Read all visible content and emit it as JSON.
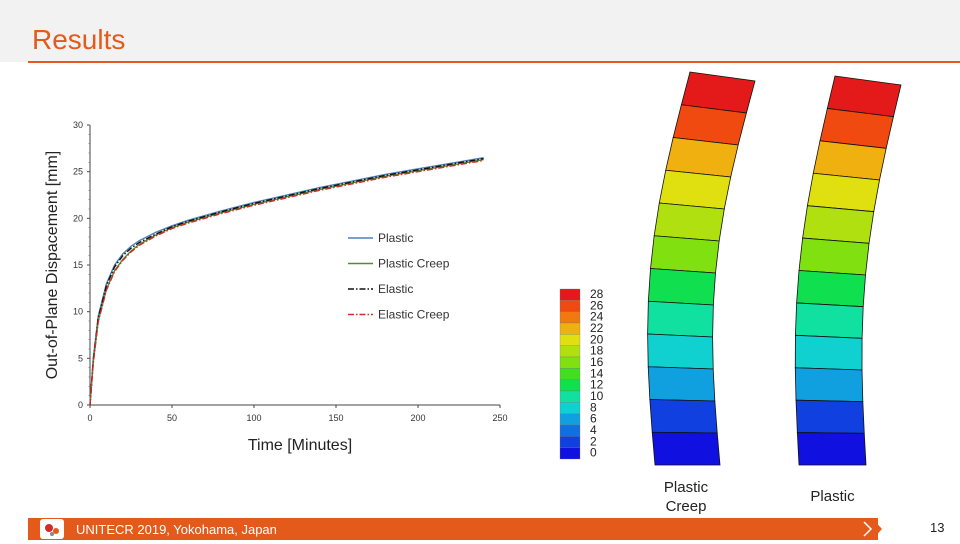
{
  "slide": {
    "title": "Results",
    "footer": "UNITECR 2019, Yokohama, Japan",
    "page": "13",
    "accent": "#e35a1a"
  },
  "chart_data": {
    "type": "line",
    "xlabel": "Time [Minutes]",
    "ylabel": "Out-of-Plane Dispacement [mm]",
    "xlim": [
      0,
      250
    ],
    "ylim": [
      0,
      30
    ],
    "xticks": [
      0,
      50,
      100,
      150,
      200,
      250
    ],
    "yticks": [
      0,
      5,
      10,
      15,
      20,
      25,
      30
    ],
    "legend_position": "center-right",
    "x": [
      0,
      2,
      5,
      10,
      15,
      20,
      25,
      30,
      40,
      50,
      60,
      80,
      100,
      120,
      140,
      160,
      180,
      200,
      220,
      240
    ],
    "series": [
      {
        "name": "Plastic",
        "color": "#4f81bd",
        "style": "solid",
        "values": [
          0,
          5.0,
          9.5,
          13.0,
          15.0,
          16.2,
          17.0,
          17.6,
          18.5,
          19.2,
          19.8,
          20.8,
          21.7,
          22.5,
          23.3,
          24.0,
          24.7,
          25.3,
          25.9,
          26.5
        ]
      },
      {
        "name": "Plastic Creep",
        "color": "#4e8f2e",
        "style": "solid",
        "values": [
          0,
          4.6,
          9.0,
          12.4,
          14.4,
          15.6,
          16.5,
          17.2,
          18.2,
          19.0,
          19.6,
          20.6,
          21.5,
          22.3,
          23.1,
          23.8,
          24.5,
          25.1,
          25.7,
          26.3
        ]
      },
      {
        "name": "Elastic",
        "color": "#111111",
        "style": "dashdot",
        "values": [
          0,
          4.8,
          9.3,
          12.8,
          14.8,
          16.0,
          16.8,
          17.4,
          18.3,
          19.1,
          19.7,
          20.7,
          21.6,
          22.4,
          23.2,
          23.9,
          24.6,
          25.2,
          25.8,
          26.4
        ]
      },
      {
        "name": "Elastic Creep",
        "color": "#d42a2a",
        "style": "dashdot",
        "values": [
          0,
          4.5,
          8.9,
          12.3,
          14.3,
          15.5,
          16.4,
          17.1,
          18.1,
          18.9,
          19.5,
          20.5,
          21.4,
          22.2,
          23.0,
          23.7,
          24.4,
          25.0,
          25.6,
          26.2
        ]
      }
    ]
  },
  "colorbar": {
    "labels": [
      "28",
      "26",
      "24",
      "22",
      "20",
      "18",
      "16",
      "14",
      "12",
      "10",
      "8",
      "6",
      "4",
      "2",
      "0"
    ],
    "colors": [
      "#e41a1a",
      "#f04a10",
      "#f07a10",
      "#f0b010",
      "#e0e010",
      "#b0e010",
      "#80e010",
      "#40e020",
      "#10e050",
      "#10e0a0",
      "#10d0d0",
      "#10a0e0",
      "#1070e0",
      "#1040e0",
      "#1010e0"
    ]
  },
  "contour_plots": [
    {
      "caption": "Plastic Creep"
    },
    {
      "caption": "Plastic"
    }
  ]
}
